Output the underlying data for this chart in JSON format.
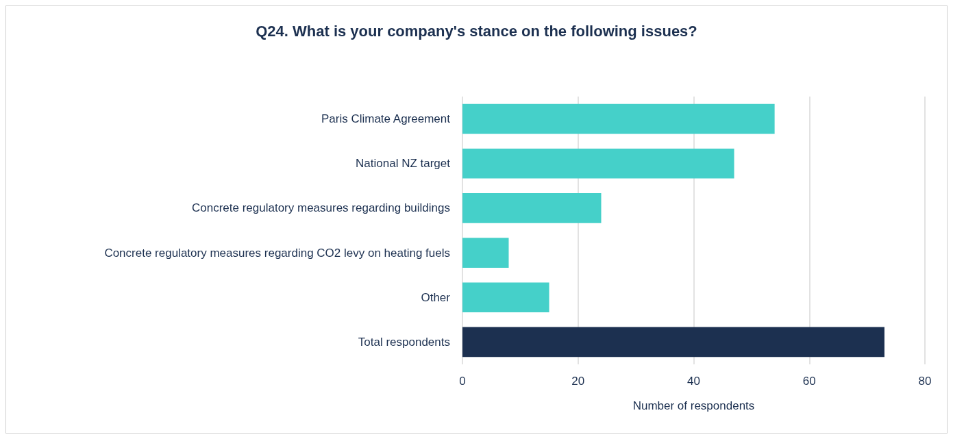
{
  "chart_data": {
    "type": "bar",
    "title": "Q24. What is your company's stance on the following issues?",
    "orientation": "horizontal",
    "categories": [
      "Paris Climate Agreement",
      "National NZ target",
      "Concrete regulatory measures regarding buildings",
      "Concrete regulatory measures regarding CO2 levy on heating fuels",
      "Other",
      "Total respondents"
    ],
    "values": [
      54,
      47,
      24,
      8,
      15,
      73
    ],
    "colors": [
      "#45d0c9",
      "#45d0c9",
      "#45d0c9",
      "#45d0c9",
      "#45d0c9",
      "#1c3050"
    ],
    "xlabel": "Number of respondents",
    "xlim": [
      0,
      80
    ],
    "xticks": [
      0,
      20,
      40,
      60,
      80
    ],
    "grid": "x"
  }
}
